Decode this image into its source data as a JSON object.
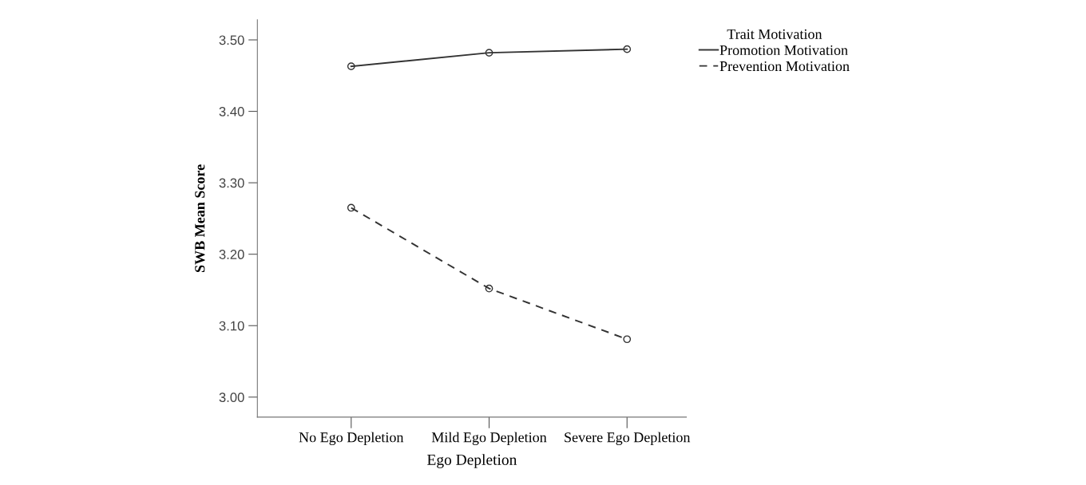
{
  "chart_data": {
    "type": "line",
    "xlabel": "Ego Depletion",
    "ylabel": "SWB Mean Score",
    "legend_title": "Trait Motivation",
    "categories": [
      "No Ego Depletion",
      "Mild Ego Depletion",
      "Severe Ego Depletion"
    ],
    "series": [
      {
        "name": "Promotion Motivation",
        "color": "#333333",
        "values": [
          3.463,
          3.482,
          3.487
        ],
        "line_style": "solid"
      },
      {
        "name": "Prevention Motivation",
        "color": "#333333",
        "values": [
          3.265,
          3.152,
          3.081
        ],
        "line_style": "dashed"
      }
    ],
    "ylim": [
      2.972,
      3.528
    ],
    "yticks": [
      {
        "value": 3.0,
        "label": "3.00"
      },
      {
        "value": 3.1,
        "label": "3.10"
      },
      {
        "value": 3.2,
        "label": "3.20"
      },
      {
        "value": 3.3,
        "label": "3.30"
      },
      {
        "value": 3.4,
        "label": "3.40"
      },
      {
        "value": 3.5,
        "label": "3.50"
      }
    ],
    "marker": "circle",
    "grid": false,
    "legend": "top right"
  }
}
